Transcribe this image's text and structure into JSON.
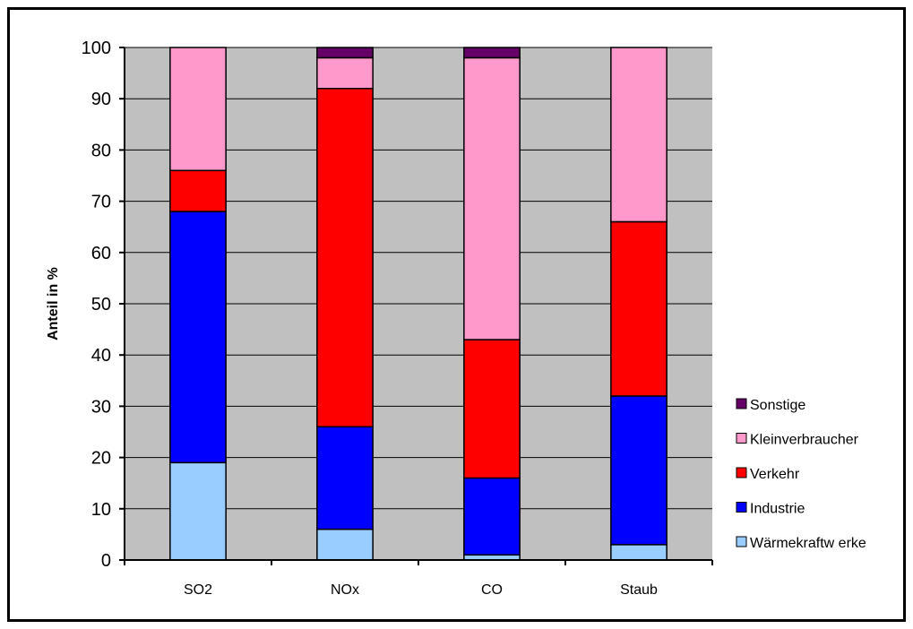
{
  "chart_data": {
    "type": "bar",
    "stacked": true,
    "title": "",
    "xlabel": "",
    "ylabel": "Anteil in %",
    "ylim": [
      0,
      100
    ],
    "yticks": [
      "0",
      "10",
      "20",
      "30",
      "40",
      "50",
      "60",
      "70",
      "80",
      "90",
      "100"
    ],
    "categories": [
      "SO2",
      "NOx",
      "CO",
      "Staub"
    ],
    "grid": true,
    "legend_position": "right",
    "plot_background": "#c0c0c0",
    "series": [
      {
        "name": "Wärmekraftw erke",
        "color": "#99ccff",
        "values": [
          19,
          6,
          1,
          3
        ]
      },
      {
        "name": "Industrie",
        "color": "#0000ff",
        "values": [
          49,
          20,
          15,
          29
        ]
      },
      {
        "name": "Verkehr",
        "color": "#ff0000",
        "values": [
          8,
          66,
          27,
          34
        ]
      },
      {
        "name": "Kleinverbraucher",
        "color": "#ff99cc",
        "values": [
          24,
          6,
          55,
          34
        ]
      },
      {
        "name": "Sonstige",
        "color": "#660066",
        "values": [
          0,
          2,
          2,
          0
        ]
      }
    ]
  }
}
